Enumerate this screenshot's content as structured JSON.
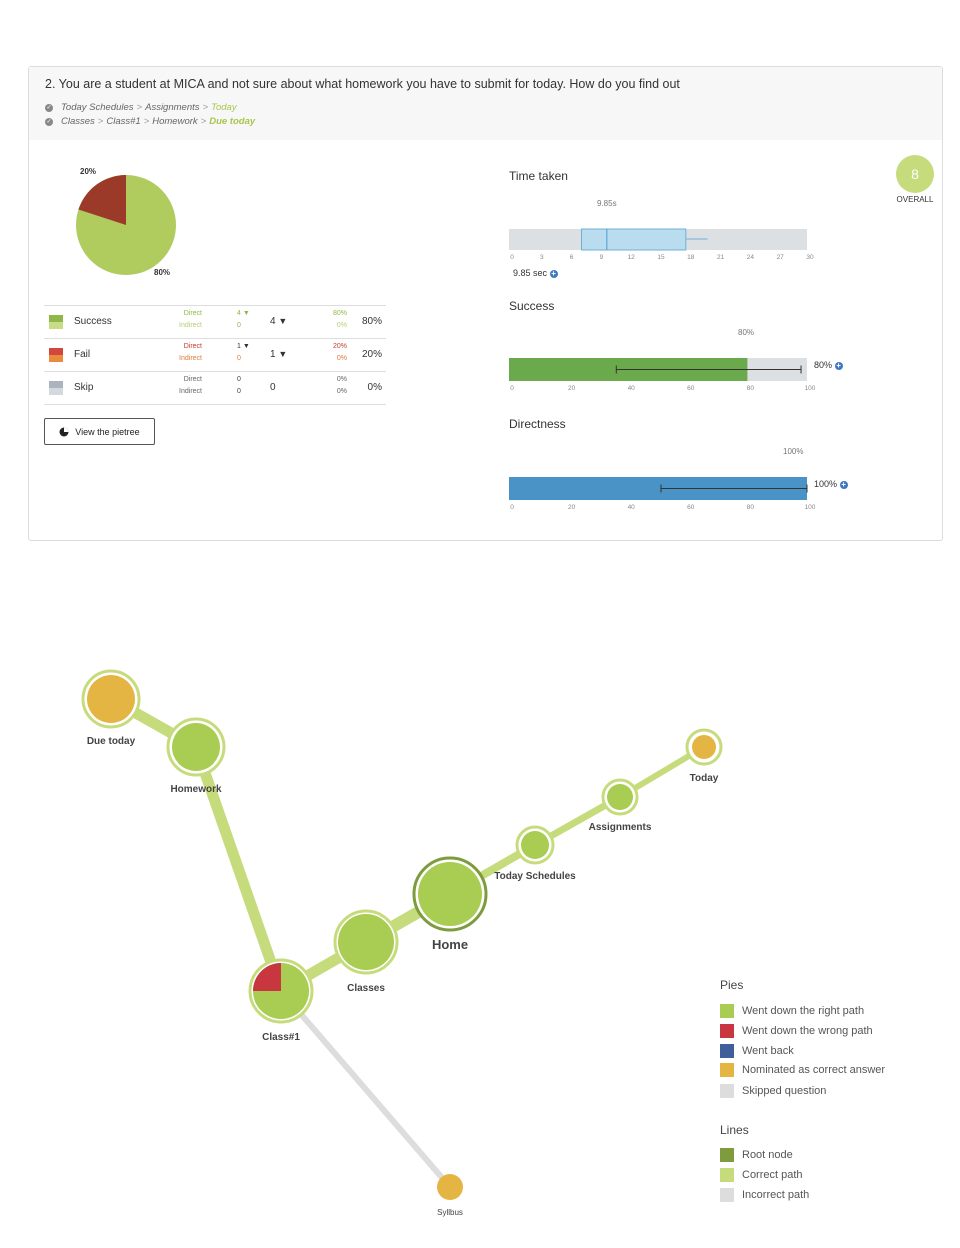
{
  "question": "2. You are a student at MICA and not sure about what homework you have to submit for today. How do you find out",
  "paths": [
    {
      "items": [
        "Today Schedules",
        "Assignments"
      ],
      "answer": "Today"
    },
    {
      "items": [
        "Classes",
        "Class#1",
        "Homework"
      ],
      "answer": "Due today"
    }
  ],
  "pie": {
    "success_pct": 80,
    "fail_pct": 20,
    "label_fail": "20%",
    "label_success": "80%",
    "colors": {
      "success": "#b0cc5e",
      "fail": "#9c3a2a"
    }
  },
  "results": [
    {
      "label": "Success",
      "direct_label": "Direct",
      "indirect_label": "Indirect",
      "direct": "4",
      "indirect": "0",
      "total": "4",
      "direct_pct": "80%",
      "indirect_pct": "0%",
      "pct": "80%",
      "color_top": "#8fb84a",
      "color_bottom": "#c9dc85",
      "accent": "#8fb84a"
    },
    {
      "label": "Fail",
      "direct_label": "Direct",
      "indirect_label": "Indirect",
      "direct": "1",
      "indirect": "0",
      "total": "1",
      "direct_pct": "20%",
      "indirect_pct": "0%",
      "pct": "20%",
      "color_top": "#d2473b",
      "color_bottom": "#e98a3c",
      "accent": "#c43d2f"
    },
    {
      "label": "Skip",
      "direct_label": "Direct",
      "indirect_label": "Indirect",
      "direct": "0",
      "indirect": "0",
      "total": "0",
      "direct_pct": "0%",
      "indirect_pct": "0%",
      "pct": "0%",
      "color_top": "#a9b4bf",
      "color_bottom": "#d3d9de",
      "accent": "#666"
    }
  ],
  "view_button": "View the pietree",
  "overall": {
    "score": "8",
    "label": "OVERALL"
  },
  "time_taken": {
    "title": "Time taken",
    "median_label": "9.85s",
    "value_label": "9.85 sec",
    "ticks": [
      "0",
      "3",
      "6",
      "9",
      "12",
      "15",
      "18",
      "21",
      "24",
      "27",
      "30"
    ],
    "q1": 7.3,
    "median": 9.85,
    "q3": 17.8,
    "whisker_min": 7.3,
    "whisker_max": 20
  },
  "success": {
    "title": "Success",
    "value": 80,
    "label": "80%",
    "side_label": "80%",
    "err": [
      36,
      98
    ],
    "ticks": [
      "0",
      "20",
      "40",
      "60",
      "80",
      "100"
    ]
  },
  "directness": {
    "title": "Directness",
    "value": 100,
    "label": "100%",
    "side_label": "100%",
    "err": [
      51,
      100
    ],
    "ticks": [
      "0",
      "20",
      "40",
      "60",
      "80",
      "100"
    ]
  },
  "tree": {
    "nodes": [
      {
        "id": "home",
        "label": "Home",
        "type": "root"
      },
      {
        "id": "today_schedules",
        "label": "Today Schedules",
        "type": "correct"
      },
      {
        "id": "assignments",
        "label": "Assignments",
        "type": "correct"
      },
      {
        "id": "today",
        "label": "Today",
        "type": "nominated"
      },
      {
        "id": "classes",
        "label": "Classes",
        "type": "correct"
      },
      {
        "id": "class1",
        "label": "Class#1",
        "type": "mixed",
        "wrong_pct": 25
      },
      {
        "id": "homework",
        "label": "Homework",
        "type": "correct"
      },
      {
        "id": "due_today",
        "label": "Due today",
        "type": "nominated"
      },
      {
        "id": "syllbus",
        "label": "Syllbus",
        "type": "nominated"
      }
    ]
  },
  "legend": {
    "pies_title": "Pies",
    "pies": [
      {
        "label": "Went down the right path",
        "color": "#a9cc52"
      },
      {
        "label": "Went down the wrong path",
        "color": "#c8363f"
      },
      {
        "label": "Went back",
        "color": "#3e5f9a"
      },
      {
        "label": "Nominated as correct answer",
        "color": "#e5b544"
      },
      {
        "label": "Skipped question",
        "color": "#dddddd"
      }
    ],
    "lines_title": "Lines",
    "lines": [
      {
        "label": "Root node",
        "color": "#7e9c3e"
      },
      {
        "label": "Correct path",
        "color": "#c6dc7c"
      },
      {
        "label": "Incorrect path",
        "color": "#dddddd"
      }
    ]
  }
}
